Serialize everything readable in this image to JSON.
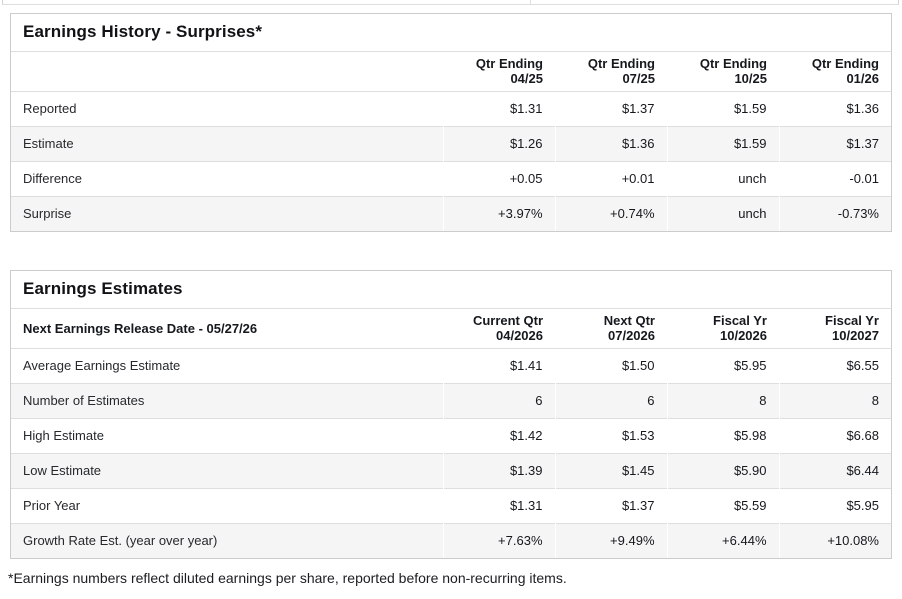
{
  "colors": {
    "positive": "#28925f",
    "negative": "#c63b3f",
    "row_alt_bg": "#f5f5f5",
    "panel_border": "#cccccc",
    "row_border": "#dedede"
  },
  "history": {
    "title": "Earnings History - Surprises*",
    "corner_label": "",
    "columns": [
      {
        "l1": "Qtr Ending",
        "l2": "04/25"
      },
      {
        "l1": "Qtr Ending",
        "l2": "07/25"
      },
      {
        "l1": "Qtr Ending",
        "l2": "10/25"
      },
      {
        "l1": "Qtr Ending",
        "l2": "01/26"
      }
    ],
    "rows": [
      {
        "label": "Reported",
        "values": [
          {
            "text": "$1.31"
          },
          {
            "text": "$1.37"
          },
          {
            "text": "$1.59"
          },
          {
            "text": "$1.36"
          }
        ]
      },
      {
        "label": "Estimate",
        "values": [
          {
            "text": "$1.26"
          },
          {
            "text": "$1.36"
          },
          {
            "text": "$1.59"
          },
          {
            "text": "$1.37"
          }
        ]
      },
      {
        "label": "Difference",
        "values": [
          {
            "text": "+0.05",
            "tone": "pos"
          },
          {
            "text": "+0.01",
            "tone": "pos"
          },
          {
            "text": "unch",
            "tone": "pos"
          },
          {
            "text": "-0.01",
            "tone": "neg"
          }
        ]
      },
      {
        "label": "Surprise",
        "values": [
          {
            "text": "+3.97%",
            "tone": "pos"
          },
          {
            "text": "+0.74%",
            "tone": "pos"
          },
          {
            "text": "unch",
            "tone": "pos"
          },
          {
            "text": "-0.73%",
            "tone": "neg"
          }
        ]
      }
    ]
  },
  "estimates": {
    "title": "Earnings Estimates",
    "corner_label": "Next Earnings Release Date - 05/27/26",
    "columns": [
      {
        "l1": "Current Qtr",
        "l2": "04/2026"
      },
      {
        "l1": "Next Qtr",
        "l2": "07/2026"
      },
      {
        "l1": "Fiscal Yr",
        "l2": "10/2026"
      },
      {
        "l1": "Fiscal Yr",
        "l2": "10/2027"
      }
    ],
    "rows": [
      {
        "label": "Average Earnings Estimate",
        "values": [
          {
            "text": "$1.41"
          },
          {
            "text": "$1.50"
          },
          {
            "text": "$5.95"
          },
          {
            "text": "$6.55"
          }
        ]
      },
      {
        "label": "Number of Estimates",
        "values": [
          {
            "text": "6"
          },
          {
            "text": "6"
          },
          {
            "text": "8"
          },
          {
            "text": "8"
          }
        ]
      },
      {
        "label": "High Estimate",
        "values": [
          {
            "text": "$1.42"
          },
          {
            "text": "$1.53"
          },
          {
            "text": "$5.98"
          },
          {
            "text": "$6.68"
          }
        ]
      },
      {
        "label": "Low Estimate",
        "values": [
          {
            "text": "$1.39"
          },
          {
            "text": "$1.45"
          },
          {
            "text": "$5.90"
          },
          {
            "text": "$6.44"
          }
        ]
      },
      {
        "label": "Prior Year",
        "values": [
          {
            "text": "$1.31"
          },
          {
            "text": "$1.37"
          },
          {
            "text": "$5.59"
          },
          {
            "text": "$5.95"
          }
        ]
      },
      {
        "label": "Growth Rate Est. (year over year)",
        "values": [
          {
            "text": "+7.63%",
            "tone": "pos"
          },
          {
            "text": "+9.49%",
            "tone": "pos"
          },
          {
            "text": "+6.44%",
            "tone": "pos"
          },
          {
            "text": "+10.08%",
            "tone": "pos"
          }
        ]
      }
    ]
  },
  "footnote": "*Earnings numbers reflect diluted earnings per share, reported before non-recurring items."
}
